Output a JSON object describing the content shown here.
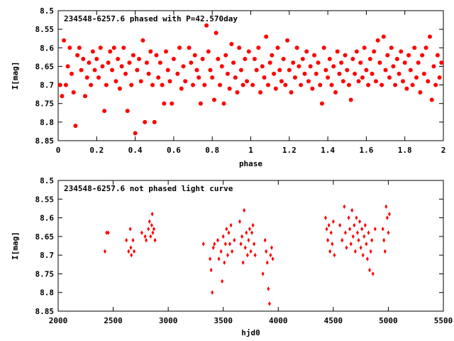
{
  "chart_data": [
    {
      "type": "scatter",
      "title": "234548-6257.6 phased with P=42.570day",
      "xlabel": "phase",
      "ylabel": "I[mag]",
      "xlim": [
        0,
        2
      ],
      "ylim": [
        8.85,
        8.5
      ],
      "y_inverted": true,
      "xticks": [
        "0",
        "0.2",
        "0.4",
        "0.6",
        "0.8",
        "1",
        "1.2",
        "1.4",
        "1.6",
        "1.8",
        "2"
      ],
      "yticks": [
        "8.5",
        "8.55",
        "8.6",
        "8.65",
        "8.7",
        "8.75",
        "8.8",
        "8.85"
      ],
      "marker": "filled-circle",
      "color": "#ff0000",
      "points": [
        [
          0.01,
          8.7
        ],
        [
          0.02,
          8.73
        ],
        [
          0.03,
          8.58
        ],
        [
          0.04,
          8.7
        ],
        [
          0.05,
          8.65
        ],
        [
          0.06,
          8.6
        ],
        [
          0.07,
          8.67
        ],
        [
          0.08,
          8.72
        ],
        [
          0.09,
          8.81
        ],
        [
          0.1,
          8.62
        ],
        [
          0.11,
          8.6
        ],
        [
          0.12,
          8.66
        ],
        [
          0.13,
          8.63
        ],
        [
          0.14,
          8.73
        ],
        [
          0.15,
          8.68
        ],
        [
          0.16,
          8.64
        ],
        [
          0.17,
          8.7
        ],
        [
          0.18,
          8.61
        ],
        [
          0.19,
          8.66
        ],
        [
          0.2,
          8.63
        ],
        [
          0.21,
          8.68
        ],
        [
          0.22,
          8.6
        ],
        [
          0.23,
          8.65
        ],
        [
          0.24,
          8.77
        ],
        [
          0.25,
          8.7
        ],
        [
          0.26,
          8.64
        ],
        [
          0.27,
          8.61
        ],
        [
          0.28,
          8.66
        ],
        [
          0.29,
          8.6
        ],
        [
          0.3,
          8.69
        ],
        [
          0.31,
          8.63
        ],
        [
          0.32,
          8.71
        ],
        [
          0.33,
          8.65
        ],
        [
          0.34,
          8.6
        ],
        [
          0.35,
          8.67
        ],
        [
          0.36,
          8.77
        ],
        [
          0.37,
          8.64
        ],
        [
          0.38,
          8.7
        ],
        [
          0.39,
          8.62
        ],
        [
          0.4,
          8.83
        ],
        [
          0.41,
          8.66
        ],
        [
          0.42,
          8.63
        ],
        [
          0.43,
          8.69
        ],
        [
          0.44,
          8.58
        ],
        [
          0.45,
          8.8
        ],
        [
          0.46,
          8.64
        ],
        [
          0.47,
          8.67
        ],
        [
          0.48,
          8.61
        ],
        [
          0.49,
          8.7
        ],
        [
          0.5,
          8.8
        ],
        [
          0.51,
          8.62
        ],
        [
          0.52,
          8.68
        ],
        [
          0.53,
          8.64
        ],
        [
          0.54,
          8.7
        ],
        [
          0.55,
          8.75
        ],
        [
          0.56,
          8.61
        ],
        [
          0.57,
          8.66
        ],
        [
          0.58,
          8.69
        ],
        [
          0.59,
          8.75
        ],
        [
          0.6,
          8.63
        ],
        [
          0.62,
          8.67
        ],
        [
          0.63,
          8.6
        ],
        [
          0.64,
          8.71
        ],
        [
          0.65,
          8.65
        ],
        [
          0.66,
          8.69
        ],
        [
          0.68,
          8.6
        ],
        [
          0.69,
          8.64
        ],
        [
          0.7,
          8.7
        ],
        [
          0.71,
          8.62
        ],
        [
          0.72,
          8.66
        ],
        [
          0.73,
          8.68
        ],
        [
          0.74,
          8.75
        ],
        [
          0.75,
          8.63
        ],
        [
          0.76,
          8.7
        ],
        [
          0.77,
          8.54
        ],
        [
          0.78,
          8.61
        ],
        [
          0.79,
          8.66
        ],
        [
          0.8,
          8.68
        ],
        [
          0.81,
          8.74
        ],
        [
          0.82,
          8.56
        ],
        [
          0.83,
          8.63
        ],
        [
          0.84,
          8.7
        ],
        [
          0.85,
          8.65
        ],
        [
          0.86,
          8.75
        ],
        [
          0.87,
          8.62
        ],
        [
          0.88,
          8.67
        ],
        [
          0.89,
          8.71
        ],
        [
          0.9,
          8.59
        ],
        [
          0.91,
          8.64
        ],
        [
          0.92,
          8.68
        ],
        [
          0.93,
          8.72
        ],
        [
          0.94,
          8.6
        ],
        [
          0.95,
          8.66
        ],
        [
          0.96,
          8.7
        ],
        [
          0.97,
          8.63
        ],
        [
          0.98,
          8.69
        ],
        [
          0.99,
          8.61
        ],
        [
          1.01,
          8.7
        ],
        [
          1.02,
          8.63
        ],
        [
          1.03,
          8.66
        ],
        [
          1.04,
          8.6
        ],
        [
          1.05,
          8.72
        ],
        [
          1.06,
          8.65
        ],
        [
          1.07,
          8.68
        ],
        [
          1.08,
          8.57
        ],
        [
          1.09,
          8.7
        ],
        [
          1.1,
          8.64
        ],
        [
          1.11,
          8.62
        ],
        [
          1.12,
          8.67
        ],
        [
          1.13,
          8.71
        ],
        [
          1.14,
          8.6
        ],
        [
          1.15,
          8.66
        ],
        [
          1.16,
          8.69
        ],
        [
          1.17,
          8.63
        ],
        [
          1.18,
          8.7
        ],
        [
          1.19,
          8.58
        ],
        [
          1.2,
          8.66
        ],
        [
          1.21,
          8.72
        ],
        [
          1.22,
          8.64
        ],
        [
          1.23,
          8.68
        ],
        [
          1.24,
          8.6
        ],
        [
          1.25,
          8.65
        ],
        [
          1.26,
          8.7
        ],
        [
          1.27,
          8.63
        ],
        [
          1.28,
          8.67
        ],
        [
          1.29,
          8.61
        ],
        [
          1.3,
          8.69
        ],
        [
          1.31,
          8.65
        ],
        [
          1.32,
          8.71
        ],
        [
          1.33,
          8.62
        ],
        [
          1.34,
          8.67
        ],
        [
          1.35,
          8.64
        ],
        [
          1.36,
          8.7
        ],
        [
          1.37,
          8.75
        ],
        [
          1.38,
          8.6
        ],
        [
          1.39,
          8.66
        ],
        [
          1.4,
          8.68
        ],
        [
          1.41,
          8.63
        ],
        [
          1.42,
          8.7
        ],
        [
          1.43,
          8.65
        ],
        [
          1.44,
          8.72
        ],
        [
          1.45,
          8.61
        ],
        [
          1.46,
          8.67
        ],
        [
          1.47,
          8.64
        ],
        [
          1.48,
          8.69
        ],
        [
          1.49,
          8.62
        ],
        [
          1.5,
          8.66
        ],
        [
          1.51,
          8.7
        ],
        [
          1.52,
          8.74
        ],
        [
          1.53,
          8.63
        ],
        [
          1.54,
          8.67
        ],
        [
          1.55,
          8.61
        ],
        [
          1.56,
          8.69
        ],
        [
          1.57,
          8.64
        ],
        [
          1.58,
          8.68
        ],
        [
          1.59,
          8.6
        ],
        [
          1.6,
          8.66
        ],
        [
          1.61,
          8.7
        ],
        [
          1.62,
          8.63
        ],
        [
          1.63,
          8.67
        ],
        [
          1.64,
          8.61
        ],
        [
          1.65,
          8.69
        ],
        [
          1.66,
          8.58
        ],
        [
          1.67,
          8.64
        ],
        [
          1.68,
          8.7
        ],
        [
          1.69,
          8.57
        ],
        [
          1.7,
          8.66
        ],
        [
          1.71,
          8.62
        ],
        [
          1.72,
          8.68
        ],
        [
          1.73,
          8.6
        ],
        [
          1.74,
          8.65
        ],
        [
          1.75,
          8.7
        ],
        [
          1.76,
          8.63
        ],
        [
          1.77,
          8.67
        ],
        [
          1.78,
          8.61
        ],
        [
          1.79,
          8.69
        ],
        [
          1.8,
          8.64
        ],
        [
          1.81,
          8.71
        ],
        [
          1.82,
          8.62
        ],
        [
          1.83,
          8.66
        ],
        [
          1.84,
          8.7
        ],
        [
          1.85,
          8.6
        ],
        [
          1.86,
          8.68
        ],
        [
          1.87,
          8.64
        ],
        [
          1.88,
          8.72
        ],
        [
          1.89,
          8.62
        ],
        [
          1.9,
          8.67
        ],
        [
          1.91,
          8.6
        ],
        [
          1.92,
          8.69
        ],
        [
          1.93,
          8.57
        ],
        [
          1.94,
          8.74
        ],
        [
          1.95,
          8.65
        ],
        [
          1.96,
          8.7
        ],
        [
          1.97,
          8.62
        ],
        [
          1.98,
          8.68
        ],
        [
          1.99,
          8.64
        ]
      ]
    },
    {
      "type": "scatter",
      "title": "234548-6257.6 not phased light curve",
      "xlabel": "hjd0",
      "ylabel": "I[mag]",
      "xlim": [
        2000,
        5500
      ],
      "ylim": [
        8.85,
        8.5
      ],
      "y_inverted": true,
      "xticks": [
        "2000",
        "2500",
        "3000",
        "3500",
        "4000",
        "4500",
        "5000",
        "5500"
      ],
      "yticks": [
        "8.5",
        "8.55",
        "8.6",
        "8.65",
        "8.7",
        "8.75",
        "8.8",
        "8.85"
      ],
      "marker": "diamond",
      "color": "#ff0000",
      "points": [
        [
          2425,
          8.69
        ],
        [
          2440,
          8.64
        ],
        [
          2455,
          8.64
        ],
        [
          2620,
          8.66
        ],
        [
          2640,
          8.69
        ],
        [
          2655,
          8.63
        ],
        [
          2660,
          8.68
        ],
        [
          2665,
          8.7
        ],
        [
          2680,
          8.66
        ],
        [
          2690,
          8.69
        ],
        [
          2760,
          8.64
        ],
        [
          2790,
          8.65
        ],
        [
          2800,
          8.66
        ],
        [
          2820,
          8.63
        ],
        [
          2830,
          8.61
        ],
        [
          2840,
          8.65
        ],
        [
          2850,
          8.62
        ],
        [
          2855,
          8.59
        ],
        [
          2860,
          8.64
        ],
        [
          2870,
          8.63
        ],
        [
          2880,
          8.66
        ],
        [
          3320,
          8.67
        ],
        [
          3380,
          8.71
        ],
        [
          3390,
          8.74
        ],
        [
          3400,
          8.8
        ],
        [
          3410,
          8.68
        ],
        [
          3420,
          8.67
        ],
        [
          3450,
          8.66
        ],
        [
          3460,
          8.71
        ],
        [
          3480,
          8.69
        ],
        [
          3490,
          8.77
        ],
        [
          3500,
          8.65
        ],
        [
          3510,
          8.72
        ],
        [
          3520,
          8.67
        ],
        [
          3530,
          8.63
        ],
        [
          3540,
          8.7
        ],
        [
          3550,
          8.64
        ],
        [
          3560,
          8.67
        ],
        [
          3570,
          8.62
        ],
        [
          3580,
          8.69
        ],
        [
          3600,
          8.66
        ],
        [
          3650,
          8.61
        ],
        [
          3660,
          8.67
        ],
        [
          3670,
          8.65
        ],
        [
          3680,
          8.72
        ],
        [
          3690,
          8.58
        ],
        [
          3700,
          8.68
        ],
        [
          3710,
          8.64
        ],
        [
          3720,
          8.7
        ],
        [
          3730,
          8.66
        ],
        [
          3740,
          8.63
        ],
        [
          3750,
          8.69
        ],
        [
          3760,
          8.64
        ],
        [
          3770,
          8.62
        ],
        [
          3780,
          8.67
        ],
        [
          3790,
          8.7
        ],
        [
          3860,
          8.75
        ],
        [
          3880,
          8.66
        ],
        [
          3890,
          8.69
        ],
        [
          3900,
          8.72
        ],
        [
          3910,
          8.79
        ],
        [
          3920,
          8.83
        ],
        [
          3930,
          8.7
        ],
        [
          3940,
          8.68
        ],
        [
          3950,
          8.71
        ],
        [
          4430,
          8.6
        ],
        [
          4440,
          8.63
        ],
        [
          4450,
          8.66
        ],
        [
          4460,
          8.62
        ],
        [
          4470,
          8.69
        ],
        [
          4480,
          8.64
        ],
        [
          4490,
          8.67
        ],
        [
          4500,
          8.61
        ],
        [
          4510,
          8.7
        ],
        [
          4560,
          8.62
        ],
        [
          4580,
          8.66
        ],
        [
          4600,
          8.57
        ],
        [
          4610,
          8.64
        ],
        [
          4620,
          8.68
        ],
        [
          4640,
          8.6
        ],
        [
          4650,
          8.63
        ],
        [
          4660,
          8.67
        ],
        [
          4670,
          8.58
        ],
        [
          4680,
          8.65
        ],
        [
          4690,
          8.62
        ],
        [
          4700,
          8.69
        ],
        [
          4710,
          8.6
        ],
        [
          4720,
          8.64
        ],
        [
          4730,
          8.66
        ],
        [
          4740,
          8.61
        ],
        [
          4750,
          8.68
        ],
        [
          4760,
          8.63
        ],
        [
          4770,
          8.7
        ],
        [
          4780,
          8.65
        ],
        [
          4790,
          8.62
        ],
        [
          4800,
          8.67
        ],
        [
          4810,
          8.71
        ],
        [
          4820,
          8.64
        ],
        [
          4830,
          8.74
        ],
        [
          4840,
          8.69
        ],
        [
          4850,
          8.66
        ],
        [
          4860,
          8.75
        ],
        [
          4880,
          8.63
        ],
        [
          4950,
          8.63
        ],
        [
          4960,
          8.66
        ],
        [
          4970,
          8.69
        ],
        [
          4980,
          8.57
        ],
        [
          4990,
          8.6
        ],
        [
          5000,
          8.64
        ],
        [
          5010,
          8.59
        ]
      ]
    }
  ]
}
